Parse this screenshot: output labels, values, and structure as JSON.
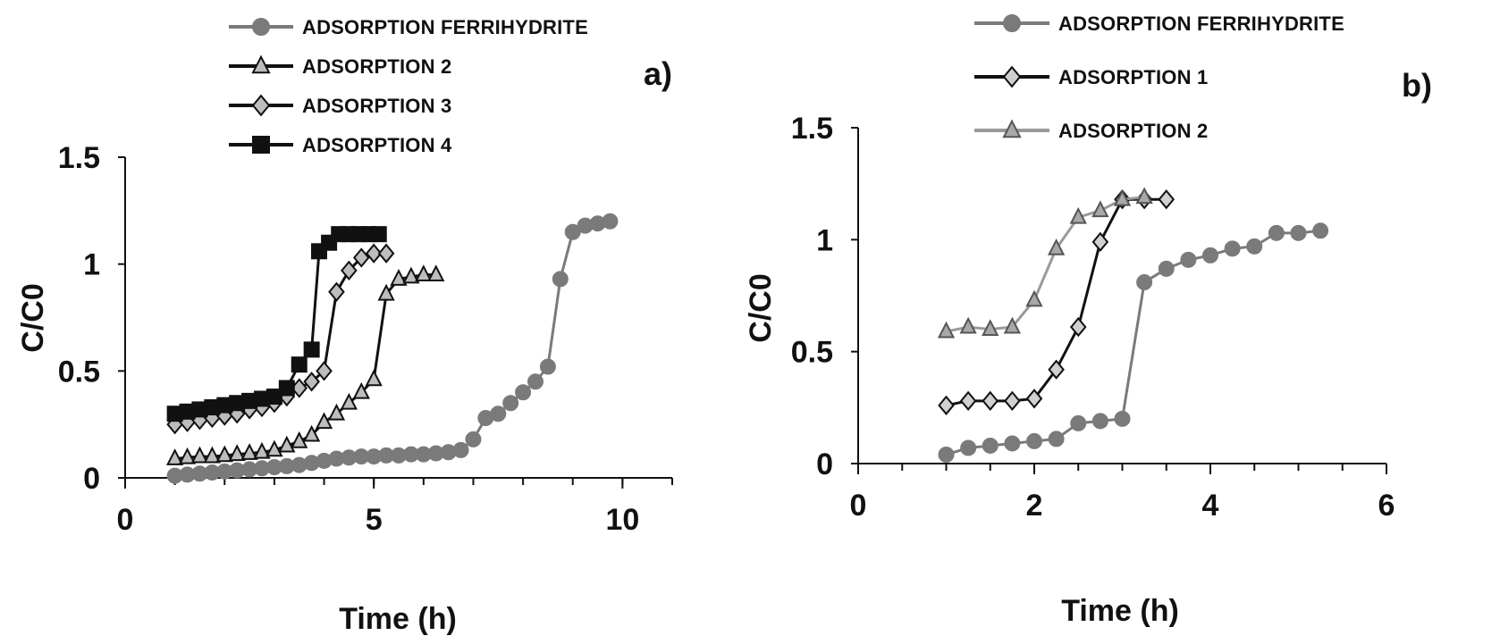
{
  "chart_data": [
    {
      "id": "a",
      "type": "line",
      "panel_label": "a)",
      "title": "",
      "xlabel": "Time (h)",
      "ylabel": "C/C0",
      "xlim": [
        0,
        11
      ],
      "ylim": [
        0,
        1.5
      ],
      "xticks": [
        0,
        5,
        10
      ],
      "xtick_labels": [
        "0",
        "5",
        "10"
      ],
      "yticks": [
        0,
        0.5,
        1,
        1.5
      ],
      "ytick_labels": [
        "0",
        "0.5",
        "1",
        "1.5"
      ],
      "grid": false,
      "legend_position": "top",
      "series": [
        {
          "name": "ADSORPTION FERRIHYDRITE",
          "marker": "circle",
          "line_color": "#7a7a7a",
          "marker_fill": "#7a7a7a",
          "marker_stroke": "#7a7a7a",
          "x": [
            1.0,
            1.25,
            1.5,
            1.75,
            2.0,
            2.25,
            2.5,
            2.75,
            3.0,
            3.25,
            3.5,
            3.75,
            4.0,
            4.25,
            4.5,
            4.75,
            5.0,
            5.25,
            5.5,
            5.75,
            6.0,
            6.25,
            6.5,
            6.75,
            7.0,
            7.25,
            7.5,
            7.75,
            8.0,
            8.25,
            8.5,
            8.75,
            9.0,
            9.25,
            9.5,
            9.75
          ],
          "y": [
            0.01,
            0.015,
            0.02,
            0.025,
            0.03,
            0.035,
            0.04,
            0.045,
            0.05,
            0.055,
            0.06,
            0.07,
            0.08,
            0.09,
            0.095,
            0.1,
            0.1,
            0.105,
            0.105,
            0.11,
            0.11,
            0.115,
            0.12,
            0.13,
            0.18,
            0.28,
            0.3,
            0.35,
            0.4,
            0.45,
            0.52,
            0.93,
            1.15,
            1.18,
            1.19,
            1.2
          ]
        },
        {
          "name": "ADSORPTION 2",
          "marker": "triangle",
          "line_color": "#111111",
          "marker_fill": "#bdbdbd",
          "marker_stroke": "#111111",
          "x": [
            1.0,
            1.25,
            1.5,
            1.75,
            2.0,
            2.25,
            2.5,
            2.75,
            3.0,
            3.25,
            3.5,
            3.75,
            4.0,
            4.25,
            4.5,
            4.75,
            5.0,
            5.25,
            5.5,
            5.75,
            6.0,
            6.25
          ],
          "y": [
            0.09,
            0.095,
            0.1,
            0.1,
            0.105,
            0.11,
            0.115,
            0.12,
            0.13,
            0.15,
            0.17,
            0.2,
            0.26,
            0.3,
            0.35,
            0.4,
            0.46,
            0.86,
            0.93,
            0.94,
            0.95,
            0.95
          ]
        },
        {
          "name": "ADSORPTION 3",
          "marker": "diamond",
          "line_color": "#111111",
          "marker_fill": "#bdbdbd",
          "marker_stroke": "#111111",
          "x": [
            1.0,
            1.25,
            1.5,
            1.75,
            2.0,
            2.25,
            2.5,
            2.75,
            3.0,
            3.25,
            3.5,
            3.75,
            4.0,
            4.25,
            4.5,
            4.75,
            5.0,
            5.25
          ],
          "y": [
            0.25,
            0.26,
            0.27,
            0.28,
            0.29,
            0.3,
            0.32,
            0.33,
            0.35,
            0.38,
            0.42,
            0.45,
            0.5,
            0.87,
            0.97,
            1.03,
            1.05,
            1.05
          ]
        },
        {
          "name": "ADSORPTION 4",
          "marker": "square",
          "line_color": "#111111",
          "marker_fill": "#111111",
          "marker_stroke": "#111111",
          "x": [
            1.0,
            1.25,
            1.5,
            1.75,
            2.0,
            2.25,
            2.5,
            2.75,
            3.0,
            3.25,
            3.5,
            3.75,
            3.9,
            4.1,
            4.3,
            4.5,
            4.7,
            4.9,
            5.1
          ],
          "y": [
            0.3,
            0.31,
            0.32,
            0.33,
            0.34,
            0.35,
            0.36,
            0.37,
            0.38,
            0.42,
            0.53,
            0.6,
            1.06,
            1.1,
            1.14,
            1.14,
            1.14,
            1.14,
            1.14
          ]
        }
      ]
    },
    {
      "id": "b",
      "type": "line",
      "panel_label": "b)",
      "title": "",
      "xlabel": "Time (h)",
      "ylabel": "C/C0",
      "xlim": [
        0,
        6
      ],
      "ylim": [
        0,
        1.5
      ],
      "xticks": [
        0,
        2,
        4,
        6
      ],
      "xtick_labels": [
        "0",
        "2",
        "4",
        "6"
      ],
      "yticks": [
        0,
        0.5,
        1,
        1.5
      ],
      "ytick_labels": [
        "0",
        "0.5",
        "1",
        "1.5"
      ],
      "grid": false,
      "legend_position": "top",
      "series": [
        {
          "name": "ADSORPTION FERRIHYDRITE",
          "marker": "circle",
          "line_color": "#7a7a7a",
          "marker_fill": "#7a7a7a",
          "marker_stroke": "#7a7a7a",
          "x": [
            1.0,
            1.25,
            1.5,
            1.75,
            2.0,
            2.25,
            2.5,
            2.75,
            3.0,
            3.25,
            3.5,
            3.75,
            4.0,
            4.25,
            4.5,
            4.75,
            5.0,
            5.25
          ],
          "y": [
            0.04,
            0.07,
            0.08,
            0.09,
            0.1,
            0.11,
            0.18,
            0.19,
            0.2,
            0.81,
            0.87,
            0.91,
            0.93,
            0.96,
            0.97,
            1.03,
            1.03,
            1.04
          ]
        },
        {
          "name": "ADSORPTION 1",
          "marker": "diamond",
          "line_color": "#111111",
          "marker_fill": "#d0d0d0",
          "marker_stroke": "#111111",
          "x": [
            1.0,
            1.25,
            1.5,
            1.75,
            2.0,
            2.25,
            2.5,
            2.75,
            3.0,
            3.25,
            3.5
          ],
          "y": [
            0.26,
            0.28,
            0.28,
            0.28,
            0.29,
            0.42,
            0.61,
            0.99,
            1.18,
            1.18,
            1.18
          ]
        },
        {
          "name": "ADSORPTION 2",
          "marker": "triangle",
          "line_color": "#9a9a9a",
          "marker_fill": "#a8a8a8",
          "marker_stroke": "#555555",
          "x": [
            1.0,
            1.25,
            1.5,
            1.75,
            2.0,
            2.25,
            2.5,
            2.75,
            3.0,
            3.25
          ],
          "y": [
            0.59,
            0.61,
            0.6,
            0.61,
            0.73,
            0.96,
            1.1,
            1.13,
            1.18,
            1.19
          ]
        }
      ]
    }
  ]
}
